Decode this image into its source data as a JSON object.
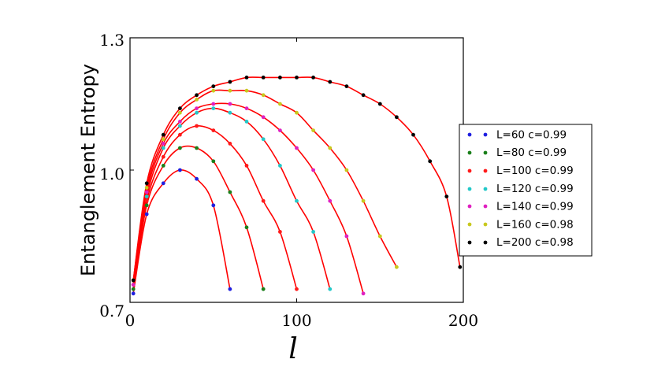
{
  "chart_data": {
    "type": "scatter",
    "title": "",
    "xlabel": "l",
    "ylabel": "Entanglement Entropy",
    "xlim": [
      0,
      200
    ],
    "ylim": [
      0.7,
      1.3
    ],
    "xticks": [
      "0",
      "100",
      "200"
    ],
    "yticks": [
      "0.7",
      "1.0",
      "1.3"
    ],
    "grid": false,
    "legend_position": "outside-right",
    "fit_color": "#ff0000",
    "x": [
      2,
      10,
      20,
      30,
      40,
      50,
      60,
      70,
      80,
      90,
      100,
      110,
      120,
      130,
      140,
      150,
      160,
      170,
      180,
      190,
      198
    ],
    "series": [
      {
        "name": "L=60 c=0.99",
        "color": "#1f1fe0",
        "L": 60,
        "values": [
          0.72,
          0.9,
          0.97,
          1.0,
          0.98,
          0.92,
          0.73,
          null,
          null,
          null,
          null,
          null,
          null,
          null,
          null,
          null,
          null,
          null,
          null,
          null,
          null
        ]
      },
      {
        "name": "L=80 c=0.99",
        "color": "#1a7f1a",
        "L": 80,
        "values": [
          0.73,
          0.92,
          1.01,
          1.05,
          1.05,
          1.02,
          0.95,
          0.87,
          0.73,
          null,
          null,
          null,
          null,
          null,
          null,
          null,
          null,
          null,
          null,
          null,
          null
        ]
      },
      {
        "name": "L=100 c=0.99",
        "color": "#ff1a1a",
        "L": 100,
        "values": [
          0.74,
          0.93,
          1.03,
          1.08,
          1.1,
          1.09,
          1.06,
          1.01,
          0.93,
          0.86,
          0.73,
          null,
          null,
          null,
          null,
          null,
          null,
          null,
          null,
          null,
          null
        ]
      },
      {
        "name": "L=120 c=0.99",
        "color": "#22c8c8",
        "L": 120,
        "values": [
          0.74,
          0.94,
          1.05,
          1.1,
          1.13,
          1.14,
          1.13,
          1.11,
          1.07,
          1.01,
          0.93,
          0.86,
          0.73,
          null,
          null,
          null,
          null,
          null,
          null,
          null,
          null
        ]
      },
      {
        "name": "L=140 c=0.99",
        "color": "#e020c0",
        "L": 140,
        "values": [
          0.74,
          0.95,
          1.06,
          1.11,
          1.14,
          1.15,
          1.15,
          1.14,
          1.12,
          1.09,
          1.05,
          1.0,
          0.93,
          0.85,
          0.72,
          null,
          null,
          null,
          null,
          null,
          null
        ]
      },
      {
        "name": "L=160 c=0.98",
        "color": "#c8c81e",
        "L": 160,
        "values": [
          0.75,
          0.96,
          1.07,
          1.13,
          1.16,
          1.18,
          1.18,
          1.18,
          1.17,
          1.15,
          1.13,
          1.09,
          1.05,
          1.0,
          0.93,
          0.85,
          0.78,
          null,
          null,
          null,
          null
        ]
      },
      {
        "name": "L=200 c=0.98",
        "color": "#000000",
        "L": 200,
        "values": [
          0.75,
          0.97,
          1.08,
          1.14,
          1.17,
          1.19,
          1.2,
          1.21,
          1.21,
          1.21,
          1.21,
          1.21,
          1.2,
          1.19,
          1.17,
          1.15,
          1.12,
          1.08,
          1.02,
          0.94,
          0.78
        ]
      }
    ]
  }
}
